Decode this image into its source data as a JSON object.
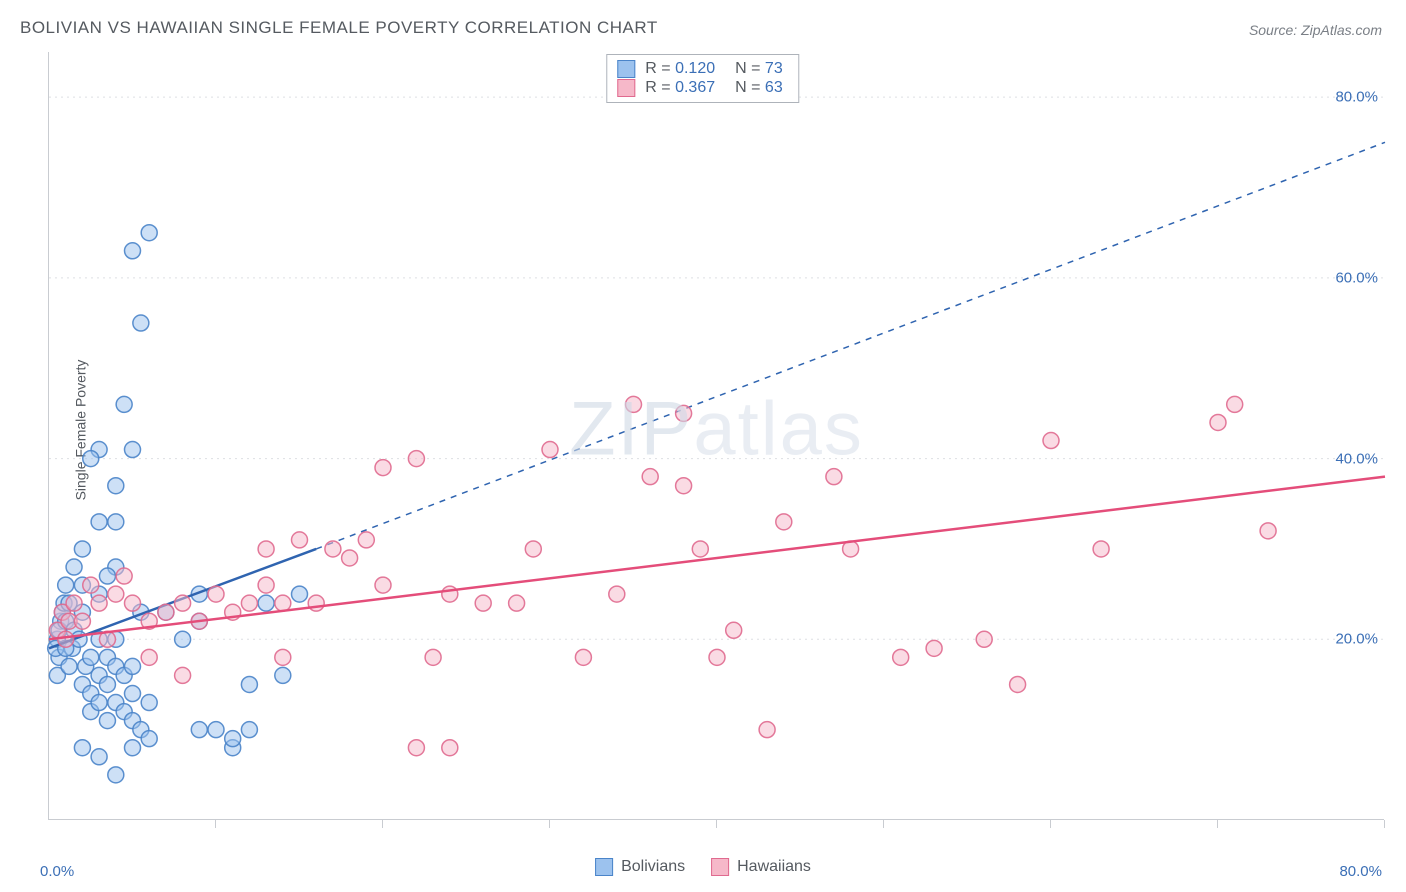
{
  "chart": {
    "type": "scatter",
    "title": "BOLIVIAN VS HAWAIIAN SINGLE FEMALE POVERTY CORRELATION CHART",
    "source_label": "Source: ZipAtlas.com",
    "ylabel": "Single Female Poverty",
    "watermark": "ZIPatlas",
    "background_color": "#ffffff",
    "axis_color": "#c9ccd1",
    "grid_color": "#dddfe3",
    "text_color": "#555a60",
    "value_color": "#3b6fb6",
    "x_range": [
      0,
      80
    ],
    "y_range": [
      0,
      85
    ],
    "x_origin_label": "0.0%",
    "x_max_label": "80.0%",
    "y_ticks": [
      {
        "v": 20,
        "label": "20.0%"
      },
      {
        "v": 40,
        "label": "40.0%"
      },
      {
        "v": 60,
        "label": "60.0%"
      },
      {
        "v": 80,
        "label": "80.0%"
      }
    ],
    "x_tick_values": [
      10,
      20,
      30,
      40,
      50,
      60,
      70,
      80
    ],
    "marker_radius": 8,
    "marker_opacity": 0.5,
    "series": [
      {
        "name": "Bolivians",
        "fill": "#9cc2ee",
        "stroke": "#4a84c9",
        "trend_color": "#2f64b0",
        "R": "0.120",
        "N": "73",
        "trend": {
          "x1": 0,
          "y1": 19,
          "x2": 16,
          "y2": 30,
          "x2_dash": 80,
          "y2_dash": 75
        },
        "points": [
          [
            0.5,
            20
          ],
          [
            0.7,
            22
          ],
          [
            0.6,
            18
          ],
          [
            0.5,
            16
          ],
          [
            0.8,
            23
          ],
          [
            0.4,
            19
          ],
          [
            0.6,
            21
          ],
          [
            0.9,
            24
          ],
          [
            1.0,
            26
          ],
          [
            1.2,
            24
          ],
          [
            1.0,
            22
          ],
          [
            1.5,
            21
          ],
          [
            1.4,
            19
          ],
          [
            1.2,
            17
          ],
          [
            1.8,
            20
          ],
          [
            2.0,
            23
          ],
          [
            2.2,
            17
          ],
          [
            2.0,
            15
          ],
          [
            2.5,
            18
          ],
          [
            2.5,
            14
          ],
          [
            2.5,
            12
          ],
          [
            3.0,
            16
          ],
          [
            3.0,
            13
          ],
          [
            3.0,
            20
          ],
          [
            3.5,
            18
          ],
          [
            3.5,
            15
          ],
          [
            3.5,
            11
          ],
          [
            4.0,
            13
          ],
          [
            4.0,
            17
          ],
          [
            4.0,
            20
          ],
          [
            4.5,
            12
          ],
          [
            4.5,
            16
          ],
          [
            5.0,
            14
          ],
          [
            5.0,
            17
          ],
          [
            5.0,
            11
          ],
          [
            5.5,
            10
          ],
          [
            5.5,
            23
          ],
          [
            6.0,
            13
          ],
          [
            2.0,
            26
          ],
          [
            3.0,
            25
          ],
          [
            4.0,
            28
          ],
          [
            4.0,
            33
          ],
          [
            3.0,
            33
          ],
          [
            4.0,
            37
          ],
          [
            3.0,
            41
          ],
          [
            2.5,
            40
          ],
          [
            5.0,
            41
          ],
          [
            6.0,
            65
          ],
          [
            5.0,
            63
          ],
          [
            5.5,
            55
          ],
          [
            4.5,
            46
          ],
          [
            2.0,
            8
          ],
          [
            3.0,
            7
          ],
          [
            4.0,
            5
          ],
          [
            5.0,
            8
          ],
          [
            6.0,
            9
          ],
          [
            7.0,
            23
          ],
          [
            8.0,
            20
          ],
          [
            9.0,
            25
          ],
          [
            9.0,
            10
          ],
          [
            10.0,
            10
          ],
          [
            9.0,
            22
          ],
          [
            11.0,
            8
          ],
          [
            11.0,
            9
          ],
          [
            12.0,
            10
          ],
          [
            12.0,
            15
          ],
          [
            13.0,
            24
          ],
          [
            14.0,
            16
          ],
          [
            15.0,
            25
          ],
          [
            2.0,
            30
          ],
          [
            3.5,
            27
          ],
          [
            1.5,
            28
          ],
          [
            1.0,
            19
          ]
        ]
      },
      {
        "name": "Hawaiians",
        "fill": "#f6b8c9",
        "stroke": "#e06a8f",
        "trend_color": "#e44d7a",
        "R": "0.367",
        "N": "63",
        "trend": {
          "x1": 0,
          "y1": 20,
          "x2": 80,
          "y2": 38
        },
        "points": [
          [
            0.5,
            21
          ],
          [
            0.8,
            23
          ],
          [
            1.0,
            20
          ],
          [
            1.2,
            22
          ],
          [
            1.5,
            24
          ],
          [
            2.0,
            22
          ],
          [
            2.5,
            26
          ],
          [
            3.0,
            24
          ],
          [
            3.5,
            20
          ],
          [
            4.0,
            25
          ],
          [
            4.5,
            27
          ],
          [
            5.0,
            24
          ],
          [
            6.0,
            22
          ],
          [
            6.0,
            18
          ],
          [
            7.0,
            23
          ],
          [
            8.0,
            24
          ],
          [
            8.0,
            16
          ],
          [
            9.0,
            22
          ],
          [
            10.0,
            25
          ],
          [
            11.0,
            23
          ],
          [
            12.0,
            24
          ],
          [
            13.0,
            26
          ],
          [
            13.0,
            30
          ],
          [
            14.0,
            24
          ],
          [
            14.0,
            18
          ],
          [
            15.0,
            31
          ],
          [
            16.0,
            24
          ],
          [
            17.0,
            30
          ],
          [
            18.0,
            29
          ],
          [
            19.0,
            31
          ],
          [
            20.0,
            26
          ],
          [
            20.0,
            39
          ],
          [
            22.0,
            40
          ],
          [
            22.0,
            8
          ],
          [
            23.0,
            18
          ],
          [
            24.0,
            25
          ],
          [
            24.0,
            8
          ],
          [
            26.0,
            24
          ],
          [
            28.0,
            24
          ],
          [
            29.0,
            30
          ],
          [
            30.0,
            41
          ],
          [
            32.0,
            18
          ],
          [
            34.0,
            25
          ],
          [
            35.0,
            46
          ],
          [
            36.0,
            38
          ],
          [
            38.0,
            37
          ],
          [
            38.0,
            45
          ],
          [
            39.0,
            30
          ],
          [
            40.0,
            18
          ],
          [
            41.0,
            21
          ],
          [
            43.0,
            10
          ],
          [
            44.0,
            33
          ],
          [
            47.0,
            38
          ],
          [
            48.0,
            30
          ],
          [
            51.0,
            18
          ],
          [
            53.0,
            19
          ],
          [
            56.0,
            20
          ],
          [
            58.0,
            15
          ],
          [
            60.0,
            42
          ],
          [
            63.0,
            30
          ],
          [
            70.0,
            44
          ],
          [
            71.0,
            46
          ],
          [
            73.0,
            32
          ]
        ]
      }
    ]
  }
}
